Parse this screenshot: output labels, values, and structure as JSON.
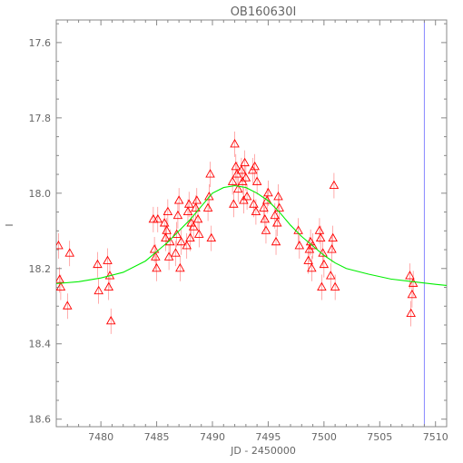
{
  "chart_data": {
    "type": "scatter",
    "title": "OB160630I",
    "xlabel": "JD - 2450000",
    "ylabel": "I",
    "xlim": [
      7476,
      7511
    ],
    "ylim": [
      18.62,
      17.54
    ],
    "y_inverted": true,
    "xticks": [
      7480,
      7485,
      7490,
      7495,
      7500,
      7505,
      7510
    ],
    "xtick_labels": [
      "7480",
      "7485",
      "7490",
      "7495",
      "7500",
      "7505",
      "7510"
    ],
    "yticks": [
      17.6,
      17.8,
      18.0,
      18.2,
      18.4,
      18.6
    ],
    "ytick_labels": [
      "17.6",
      "17.8",
      "18.0",
      "18.2",
      "18.4",
      "18.6"
    ],
    "grid": false,
    "marker": "open-triangle",
    "colors": {
      "points": "#ff0000",
      "model": "#00ee00",
      "marker_line": "#8888ff",
      "axes": "#888888"
    },
    "vertical_marker_x": 7509,
    "model": {
      "name": "",
      "x": [
        7476,
        7478,
        7480,
        7482,
        7484,
        7485,
        7486,
        7487,
        7488,
        7489,
        7490,
        7491,
        7492,
        7493,
        7494,
        7495,
        7496,
        7497,
        7498,
        7499,
        7500,
        7501,
        7502,
        7504,
        7506,
        7508,
        7510,
        7511
      ],
      "y": [
        18.24,
        18.235,
        18.225,
        18.21,
        18.18,
        18.155,
        18.13,
        18.1,
        18.07,
        18.035,
        18.0,
        17.985,
        17.98,
        17.985,
        18.0,
        18.02,
        18.05,
        18.085,
        18.115,
        18.14,
        18.165,
        18.185,
        18.2,
        18.215,
        18.228,
        18.235,
        18.242,
        18.245
      ]
    },
    "series": [
      {
        "name": "",
        "x": [
          7476.2,
          7476.3,
          7476.4,
          7477.0,
          7477.2,
          7479.7,
          7479.8,
          7480.6,
          7480.7,
          7480.8,
          7480.9,
          7484.7,
          7484.8,
          7484.9,
          7485.0,
          7485.1,
          7485.7,
          7485.8,
          7485.9,
          7486.0,
          7486.1,
          7486.2,
          7486.7,
          7486.8,
          7486.9,
          7487.0,
          7487.1,
          7487.2,
          7487.7,
          7487.8,
          7487.9,
          7488.0,
          7488.1,
          7488.3,
          7488.5,
          7488.6,
          7488.7,
          7488.8,
          7489.6,
          7489.7,
          7489.8,
          7489.9,
          7491.8,
          7491.9,
          7492.0,
          7492.1,
          7492.2,
          7492.3,
          7492.6,
          7492.7,
          7492.8,
          7492.9,
          7493.0,
          7493.1,
          7493.6,
          7493.7,
          7493.8,
          7493.9,
          7494.0,
          7494.6,
          7494.7,
          7494.8,
          7494.9,
          7495.0,
          7495.6,
          7495.7,
          7495.8,
          7495.9,
          7496.0,
          7497.7,
          7497.8,
          7498.6,
          7498.7,
          7498.8,
          7498.9,
          7499.0,
          7499.6,
          7499.7,
          7499.8,
          7499.9,
          7500.0,
          7500.6,
          7500.7,
          7500.8,
          7500.9,
          7501.0,
          7507.7,
          7507.8,
          7507.9,
          7508.0
        ],
        "y": [
          18.14,
          18.23,
          18.25,
          18.3,
          18.16,
          18.19,
          18.26,
          18.18,
          18.25,
          18.22,
          18.34,
          18.07,
          18.15,
          18.17,
          18.2,
          18.07,
          18.08,
          18.12,
          18.1,
          18.05,
          18.17,
          18.13,
          18.16,
          18.11,
          18.06,
          18.02,
          18.2,
          18.13,
          18.14,
          18.05,
          18.03,
          18.12,
          18.08,
          18.09,
          18.04,
          18.02,
          18.07,
          18.11,
          18.04,
          18.01,
          17.95,
          18.12,
          17.97,
          18.03,
          17.87,
          17.93,
          17.95,
          17.99,
          17.94,
          17.97,
          18.02,
          17.92,
          17.96,
          18.01,
          17.94,
          18.03,
          17.93,
          18.05,
          17.97,
          18.04,
          18.07,
          18.1,
          18.02,
          18.0,
          18.06,
          18.13,
          18.08,
          18.01,
          18.04,
          18.1,
          18.14,
          18.18,
          18.15,
          18.13,
          18.2,
          18.14,
          18.1,
          18.12,
          18.25,
          18.16,
          18.19,
          18.22,
          18.15,
          18.12,
          17.98,
          18.25,
          18.22,
          18.32,
          18.27,
          18.24
        ]
      }
    ]
  }
}
